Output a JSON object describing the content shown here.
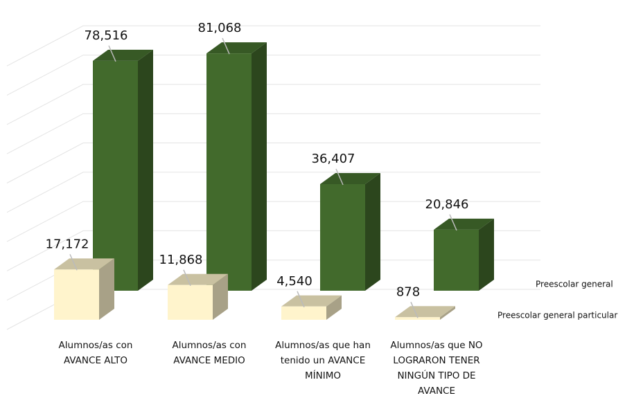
{
  "chart_data": {
    "type": "bar3d",
    "categories": [
      "Alumnos/as con AVANCE ALTO",
      "Alumnos/as con AVANCE MEDIO",
      "Alumnos/as que han tenido un AVANCE MÍNIMO",
      "Alumnos/as que NO LOGRARON TENER NINGÚN TIPO DE AVANCE"
    ],
    "series": [
      {
        "name": "Preescolar general",
        "color": "#426a2c",
        "values": [
          78516,
          81068,
          36407,
          20846
        ],
        "value_labels": [
          "78,516",
          "81,068",
          "36,407",
          "20,846"
        ]
      },
      {
        "name": "Preescolar general particular",
        "color": "#fff4cc",
        "values": [
          17172,
          11868,
          4540,
          878
        ],
        "value_labels": [
          "17,172",
          "11,868",
          "4,540",
          "878"
        ]
      }
    ],
    "ylim": [
      0,
      100000
    ],
    "yticks": [
      0,
      10000,
      20000,
      30000,
      40000,
      50000,
      60000,
      70000,
      80000,
      90000
    ],
    "grid": true
  }
}
